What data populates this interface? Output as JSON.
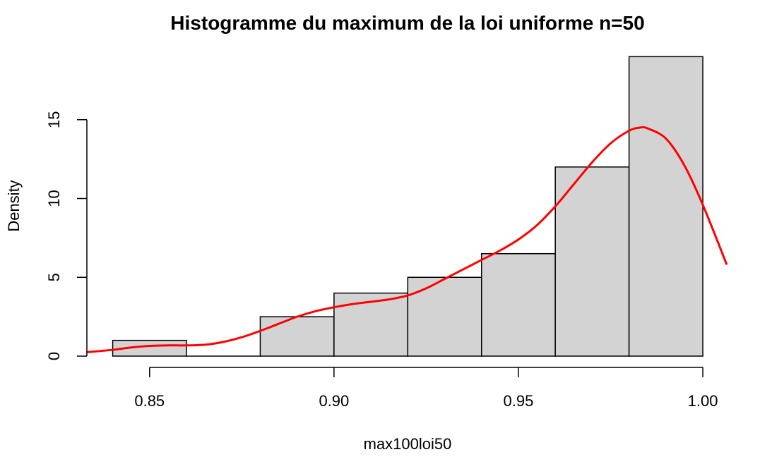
{
  "chart_data": {
    "type": "bar",
    "title": "Histogramme du maximum de la loi uniforme n=50",
    "xlabel": "max100loi50",
    "ylabel": "Density",
    "xlim": [
      0.833,
      1.0065
    ],
    "ylim": [
      0,
      19
    ],
    "x_ticks": [
      "0.85",
      "0.90",
      "0.95",
      "1.00"
    ],
    "y_ticks": [
      "0",
      "5",
      "10",
      "15"
    ],
    "x_tick_values": [
      0.85,
      0.9,
      0.95,
      1.0
    ],
    "y_tick_values": [
      0,
      5,
      10,
      15
    ],
    "grid": false,
    "series": [
      {
        "kind": "histogram",
        "bins": [
          {
            "start": 0.84,
            "end": 0.86,
            "density": 1.0
          },
          {
            "start": 0.86,
            "end": 0.88,
            "density": 0.0
          },
          {
            "start": 0.88,
            "end": 0.9,
            "density": 2.5
          },
          {
            "start": 0.9,
            "end": 0.92,
            "density": 4.0
          },
          {
            "start": 0.92,
            "end": 0.94,
            "density": 5.0
          },
          {
            "start": 0.94,
            "end": 0.96,
            "density": 6.5
          },
          {
            "start": 0.96,
            "end": 0.98,
            "density": 12.0
          },
          {
            "start": 0.98,
            "end": 1.0,
            "density": 19.0
          }
        ],
        "fill_color": "#d3d3d3",
        "stroke_color": "#000000"
      },
      {
        "kind": "density-curve",
        "color": "#ff0000",
        "x": [
          0.833,
          0.84,
          0.845,
          0.85,
          0.855,
          0.86,
          0.865,
          0.87,
          0.875,
          0.88,
          0.885,
          0.89,
          0.895,
          0.9,
          0.905,
          0.91,
          0.915,
          0.92,
          0.925,
          0.93,
          0.935,
          0.94,
          0.945,
          0.95,
          0.955,
          0.96,
          0.965,
          0.97,
          0.975,
          0.98,
          0.983,
          0.985,
          0.99,
          0.995,
          1.0,
          1.0065
        ],
        "y": [
          0.25,
          0.4,
          0.55,
          0.65,
          0.68,
          0.68,
          0.72,
          0.9,
          1.2,
          1.6,
          2.05,
          2.5,
          2.85,
          3.1,
          3.3,
          3.45,
          3.6,
          3.85,
          4.3,
          4.9,
          5.5,
          6.1,
          6.7,
          7.4,
          8.3,
          9.5,
          10.9,
          12.3,
          13.5,
          14.3,
          14.5,
          14.45,
          13.8,
          12.1,
          9.6,
          5.8
        ]
      }
    ]
  }
}
